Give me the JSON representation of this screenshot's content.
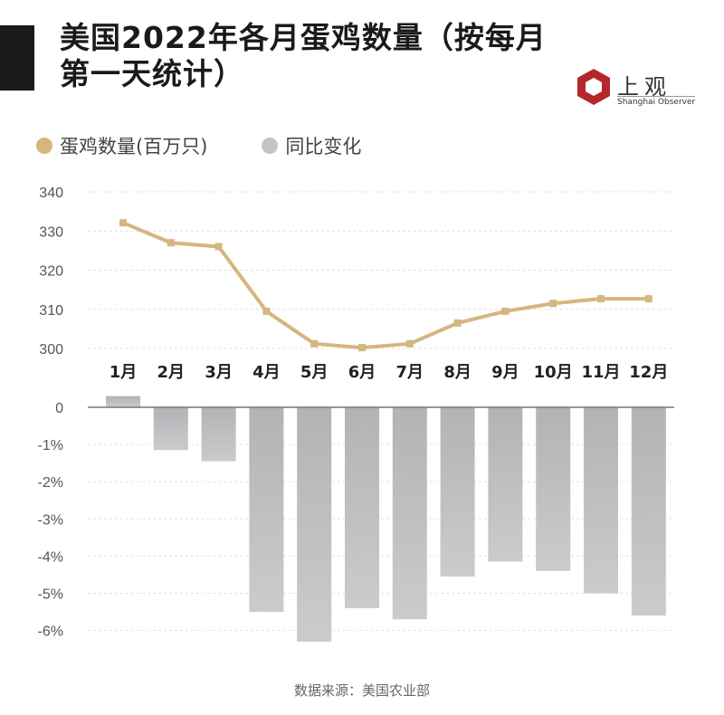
{
  "title": "美国2022年各月蛋鸡数量（按每月第一天统计）",
  "logo": {
    "cn": "上观",
    "en": "Shanghai Observer",
    "color": "#b5272d"
  },
  "source": "数据来源：美国农业部",
  "chart_data": [
    {
      "type": "line",
      "categories": [
        "1月",
        "2月",
        "3月",
        "4月",
        "5月",
        "6月",
        "7月",
        "8月",
        "9月",
        "10月",
        "11月",
        "12月"
      ],
      "series": [
        {
          "name": "蛋鸡数量(百万只)",
          "values": [
            332.1,
            327.0,
            326.0,
            309.5,
            301.2,
            300.2,
            301.2,
            306.5,
            309.5,
            311.5,
            312.7,
            312.7
          ],
          "color": "#d4b67e"
        }
      ],
      "yticks": [
        300,
        310,
        320,
        330,
        340
      ],
      "ylim": [
        300,
        340
      ],
      "grid": true
    },
    {
      "type": "bar",
      "categories": [
        "1月",
        "2月",
        "3月",
        "4月",
        "5月",
        "6月",
        "7月",
        "8月",
        "9月",
        "10月",
        "11月",
        "12月"
      ],
      "series": [
        {
          "name": "同比变化",
          "values": [
            0.3,
            -1.15,
            -1.45,
            -5.5,
            -6.3,
            -5.4,
            -5.7,
            -4.55,
            -4.15,
            -4.4,
            -5.0,
            -5.6
          ],
          "color": "#bdbdc0"
        }
      ],
      "yticks": [
        "0",
        "-1%",
        "-2%",
        "-3%",
        "-4%",
        "-5%",
        "-6%"
      ],
      "ylim": [
        -6.3,
        0.3
      ],
      "unit": "%",
      "grid": true
    }
  ]
}
